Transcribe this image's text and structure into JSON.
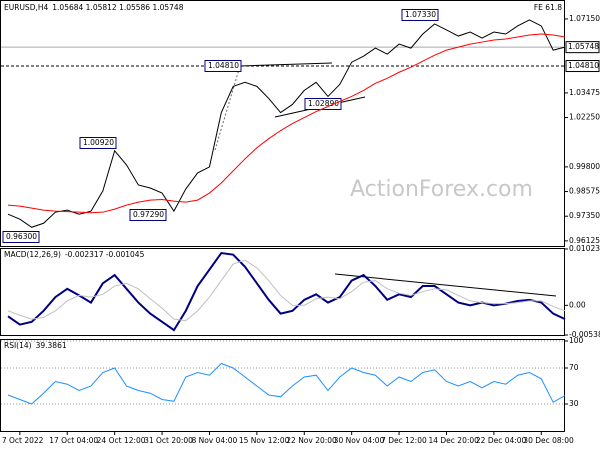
{
  "chart_data": [
    {
      "type": "line",
      "title": "EURUSD,H4",
      "subtitle": "1.05684 1.05812 1.05586 1.05748",
      "annotation": "FE 61.8",
      "watermark": "ActionForex.com",
      "series": [
        {
          "color": "#000000",
          "values": [
            0.9745,
            0.972,
            0.968,
            0.97,
            0.9755,
            0.9765,
            0.9745,
            0.976,
            0.986,
            1.006,
            0.999,
            0.989,
            0.9875,
            0.985,
            0.976,
            0.987,
            0.995,
            0.998,
            1.025,
            1.038,
            1.04,
            1.038,
            1.032,
            1.025,
            1.029,
            1.036,
            1.04,
            1.033,
            1.039,
            1.05,
            1.053,
            1.057,
            1.054,
            1.059,
            1.057,
            1.064,
            1.069,
            1.066,
            1.063,
            1.065,
            1.062,
            1.065,
            1.064,
            1.068,
            1.071,
            1.068,
            1.056,
            1.0575
          ]
        },
        {
          "color": "#ff0000",
          "values": [
            0.979,
            0.9785,
            0.9775,
            0.9765,
            0.976,
            0.9758,
            0.9755,
            0.9752,
            0.9755,
            0.977,
            0.979,
            0.9805,
            0.9815,
            0.9818,
            0.981,
            0.9805,
            0.9815,
            0.985,
            0.99,
            0.996,
            1.002,
            1.0075,
            1.012,
            1.016,
            1.0195,
            1.0225,
            1.0255,
            1.028,
            1.0305,
            1.033,
            1.036,
            1.0395,
            1.042,
            1.045,
            1.0475,
            1.0505,
            1.0535,
            1.056,
            1.0575,
            1.059,
            1.06,
            1.061,
            1.0615,
            1.0625,
            1.0635,
            1.064,
            1.0635,
            1.0625
          ]
        }
      ],
      "ylim": [
        0.9587,
        1.0804
      ],
      "yticks": [
        {
          "value": 1.0715,
          "label": "1.07150"
        },
        {
          "value": 1.03475,
          "label": "1.03475"
        },
        {
          "value": 1.0225,
          "label": "1.02250"
        },
        {
          "value": 0.998,
          "label": "0.99800"
        },
        {
          "value": 0.98575,
          "label": "0.98575"
        },
        {
          "value": 0.9735,
          "label": "0.97350"
        },
        {
          "value": 0.96125,
          "label": "0.96125"
        }
      ],
      "markers": [
        {
          "value": 1.05748,
          "label": "1.05748",
          "style": "solid"
        },
        {
          "value": 1.0481,
          "label": "1.04810",
          "style": "dashed"
        }
      ],
      "annotations": [
        "0.96300",
        "1.00920",
        "0.97290",
        "1.04810",
        "1.02890",
        "1.07330"
      ],
      "grid": false
    },
    {
      "type": "line",
      "title": "MACD(12,26,9)",
      "subtitle": "-0.002317 -0.001045",
      "series": [
        {
          "color": "#000080",
          "width": 2,
          "values": [
            -0.002,
            -0.0035,
            -0.003,
            -0.001,
            0.0015,
            0.003,
            0.0018,
            0.0005,
            0.004,
            0.0055,
            0.003,
            0.0005,
            -0.0015,
            -0.003,
            -0.0045,
            -0.001,
            0.0035,
            0.0065,
            0.0095,
            0.0092,
            0.007,
            0.004,
            0.001,
            -0.0015,
            -0.001,
            0.001,
            0.002,
            0.0005,
            0.0015,
            0.0045,
            0.0055,
            0.0035,
            0.001,
            0.002,
            0.0015,
            0.0035,
            0.0035,
            0.002,
            0.0005,
            0,
            0.0005,
            0,
            0.0003,
            0.0008,
            0.001,
            0.0005,
            -0.0015,
            -0.0025
          ]
        },
        {
          "color": "#c0c0c0",
          "width": 1,
          "values": [
            -0.001,
            -0.0018,
            -0.0025,
            -0.0022,
            -0.001,
            0.0008,
            0.0018,
            0.0015,
            0.002,
            0.0035,
            0.004,
            0.003,
            0.0012,
            -0.0005,
            -0.0025,
            -0.0028,
            -0.001,
            0.0015,
            0.0045,
            0.0075,
            0.0082,
            0.0068,
            0.0045,
            0.0018,
            0,
            0,
            0.0012,
            0.0015,
            0.0012,
            0.0025,
            0.0042,
            0.0045,
            0.003,
            0.0022,
            0.0018,
            0.0025,
            0.003,
            0.0028,
            0.0018,
            0.0008,
            0.0005,
            0.0003,
            0.0003,
            0.0005,
            0.0008,
            0.0008,
            -0.0002,
            -0.001
          ]
        }
      ],
      "ylim": [
        -0.005389,
        0.010232
      ],
      "yticks": [
        {
          "value": 0.010232,
          "label": "0.010232"
        },
        {
          "value": 0,
          "label": "0.00"
        },
        {
          "value": -0.005389,
          "label": "-0.005389"
        }
      ],
      "grid": false
    },
    {
      "type": "line",
      "title": "RSI(14)",
      "subtitle": "39.3861",
      "categories": [
        null,
        "7 Oct 2022",
        null,
        null,
        null,
        "17 Oct 04:00",
        null,
        null,
        null,
        "24 Oct 12:00",
        null,
        null,
        null,
        "31 Oct 20:00",
        null,
        null,
        null,
        "8 Nov 04:00",
        null,
        null,
        null,
        "15 Nov 12:00",
        null,
        null,
        null,
        "22 Nov 20:00",
        null,
        null,
        null,
        "30 Nov 04:00",
        null,
        null,
        null,
        "7 Dec 12:00",
        null,
        null,
        null,
        "14 Dec 20:00",
        null,
        null,
        null,
        "22 Dec 04:00",
        null,
        null,
        null,
        "30 Dec 08:00",
        null,
        null
      ],
      "series": [
        {
          "color": "#1e90ff",
          "width": 1,
          "values": [
            40,
            35,
            30,
            42,
            55,
            52,
            45,
            50,
            65,
            70,
            50,
            45,
            42,
            35,
            33,
            60,
            65,
            62,
            75,
            70,
            60,
            50,
            40,
            38,
            50,
            60,
            62,
            45,
            60,
            70,
            65,
            62,
            50,
            60,
            55,
            65,
            68,
            55,
            50,
            55,
            48,
            55,
            52,
            62,
            65,
            58,
            32,
            39.3861
          ]
        }
      ],
      "ylim": [
        0,
        100
      ],
      "yticks": [
        100,
        70,
        30
      ],
      "tick_lines": "dotted",
      "grid": false
    }
  ]
}
